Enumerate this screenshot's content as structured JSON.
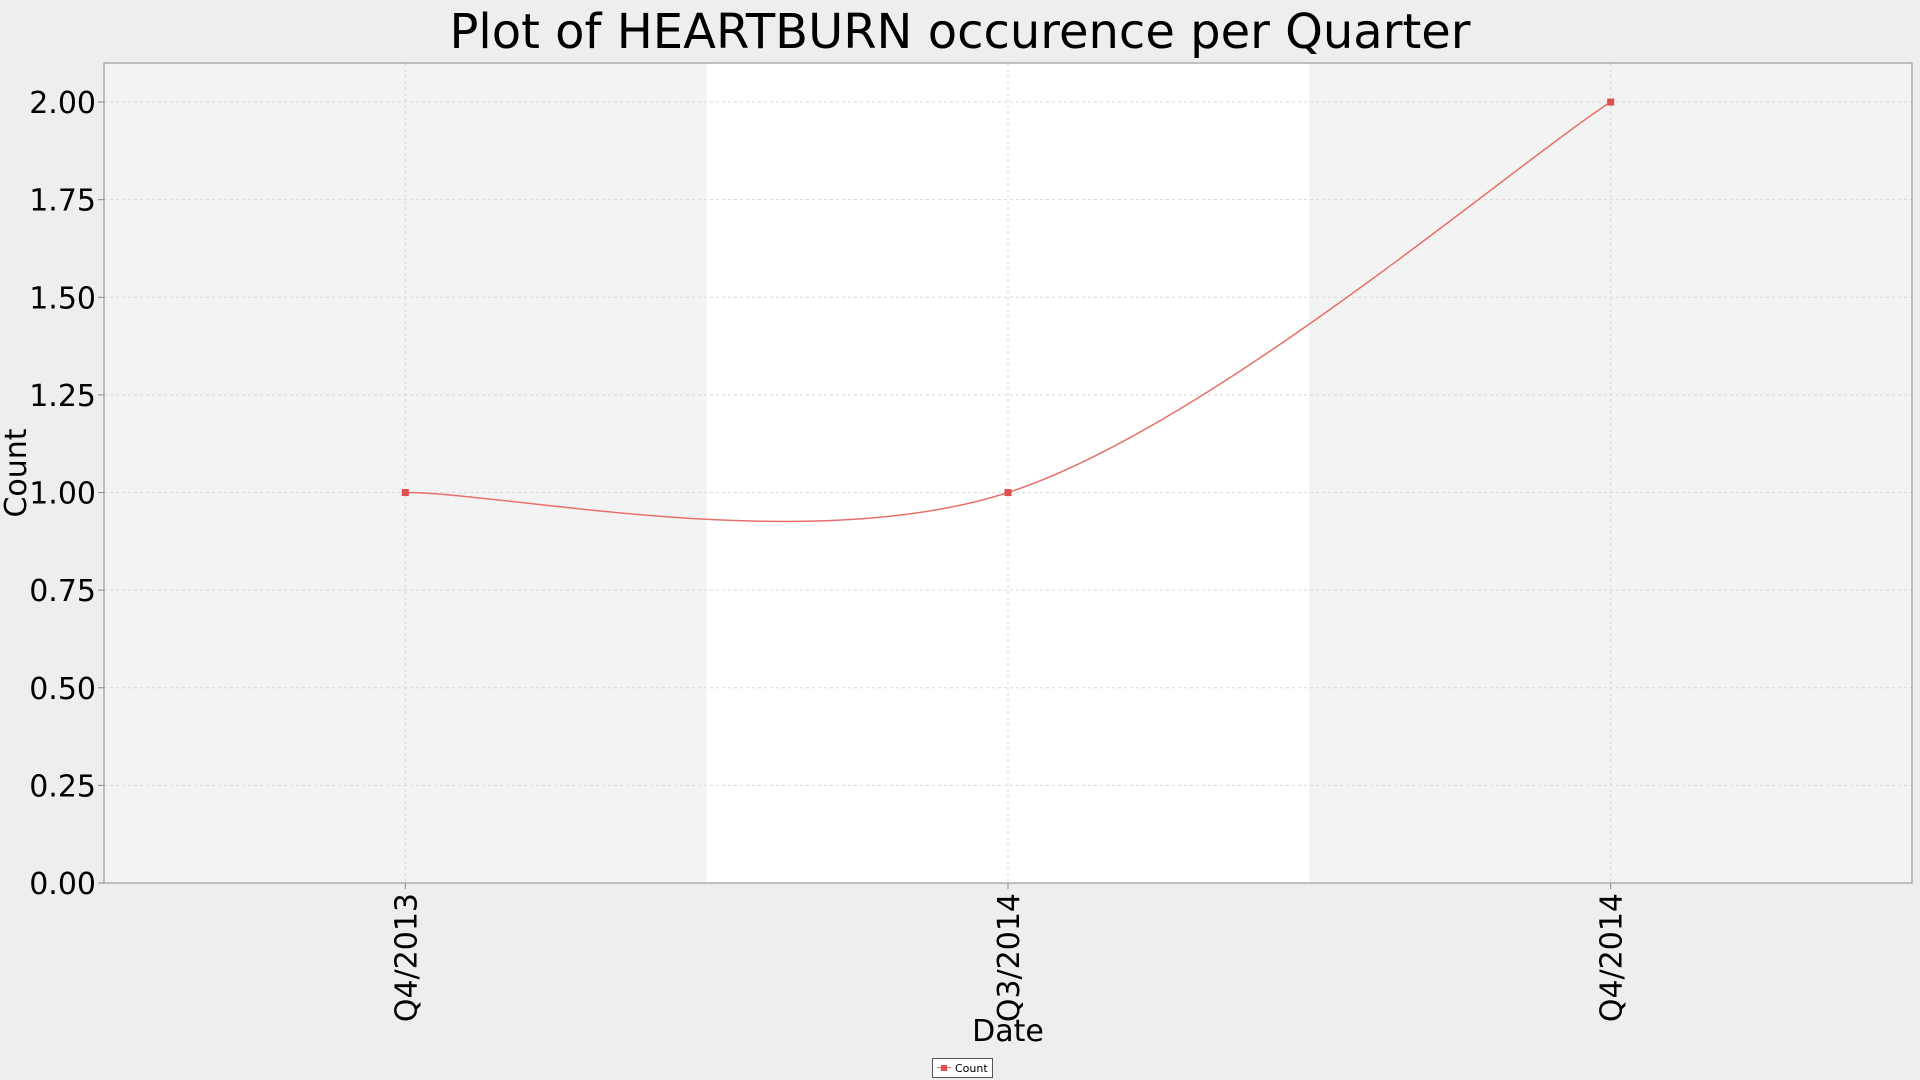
{
  "chart_data": {
    "type": "line",
    "title": "Plot of HEARTBURN occurence per Quarter",
    "xlabel": "Date",
    "ylabel": "Count",
    "categories": [
      "Q4/2013",
      "Q3/2014",
      "Q4/2014"
    ],
    "series": [
      {
        "name": "Count",
        "values": [
          1,
          1,
          2
        ],
        "color": "#e05050"
      }
    ],
    "ylim": [
      0,
      2.1
    ],
    "yticks": [
      "0.00",
      "0.25",
      "0.50",
      "0.75",
      "1.00",
      "1.25",
      "1.50",
      "1.75",
      "2.00"
    ],
    "grid": true,
    "smoothed": true,
    "legend_position": "bottom-center",
    "colors": {
      "background": "#eeeeee",
      "plot_band_light": "#ffffff",
      "plot_band_dark": "#f3f3f3",
      "grid": "#d8d8d8",
      "line": "#e8706a",
      "marker": "#e05050"
    }
  },
  "legend": {
    "label": "Count"
  }
}
